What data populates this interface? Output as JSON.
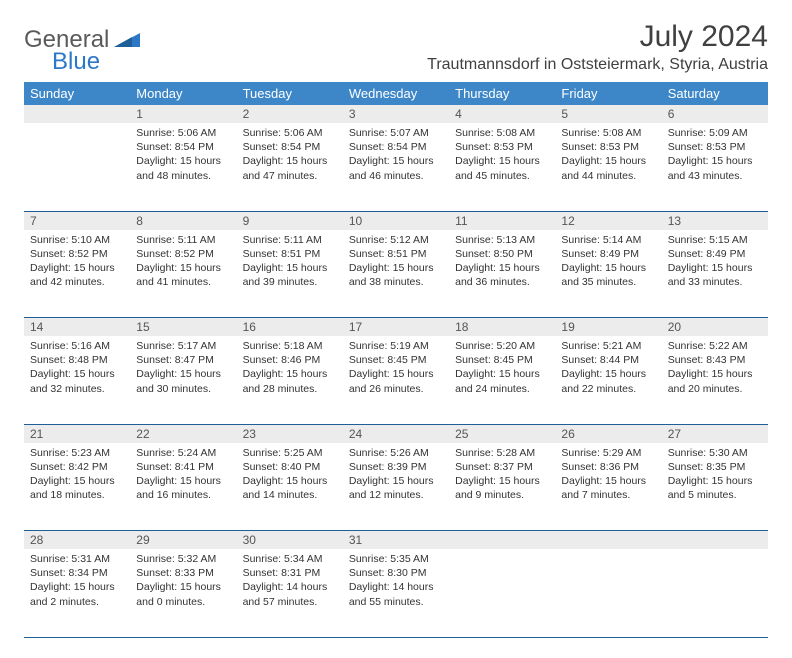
{
  "brand": {
    "general": "General",
    "blue": "Blue"
  },
  "title": "July 2024",
  "location": "Trautmannsdorf in Oststeiermark, Styria, Austria",
  "colors": {
    "header_bg": "#3d87c9",
    "header_fg": "#ffffff",
    "daynum_bg": "#ececec",
    "row_divider": "#1f5f99",
    "text": "#333333",
    "logo_gray": "#5a5a5a",
    "logo_blue": "#2d78c6"
  },
  "typography": {
    "title_fontsize": 30,
    "location_fontsize": 16,
    "dayheader_fontsize": 13,
    "daynum_fontsize": 12,
    "body_fontsize": 10.5
  },
  "day_headers": [
    "Sunday",
    "Monday",
    "Tuesday",
    "Wednesday",
    "Thursday",
    "Friday",
    "Saturday"
  ],
  "weeks": [
    {
      "nums": [
        "",
        "1",
        "2",
        "3",
        "4",
        "5",
        "6"
      ],
      "cells": [
        null,
        {
          "sunrise": "Sunrise: 5:06 AM",
          "sunset": "Sunset: 8:54 PM",
          "day1": "Daylight: 15 hours",
          "day2": "and 48 minutes."
        },
        {
          "sunrise": "Sunrise: 5:06 AM",
          "sunset": "Sunset: 8:54 PM",
          "day1": "Daylight: 15 hours",
          "day2": "and 47 minutes."
        },
        {
          "sunrise": "Sunrise: 5:07 AM",
          "sunset": "Sunset: 8:54 PM",
          "day1": "Daylight: 15 hours",
          "day2": "and 46 minutes."
        },
        {
          "sunrise": "Sunrise: 5:08 AM",
          "sunset": "Sunset: 8:53 PM",
          "day1": "Daylight: 15 hours",
          "day2": "and 45 minutes."
        },
        {
          "sunrise": "Sunrise: 5:08 AM",
          "sunset": "Sunset: 8:53 PM",
          "day1": "Daylight: 15 hours",
          "day2": "and 44 minutes."
        },
        {
          "sunrise": "Sunrise: 5:09 AM",
          "sunset": "Sunset: 8:53 PM",
          "day1": "Daylight: 15 hours",
          "day2": "and 43 minutes."
        }
      ]
    },
    {
      "nums": [
        "7",
        "8",
        "9",
        "10",
        "11",
        "12",
        "13"
      ],
      "cells": [
        {
          "sunrise": "Sunrise: 5:10 AM",
          "sunset": "Sunset: 8:52 PM",
          "day1": "Daylight: 15 hours",
          "day2": "and 42 minutes."
        },
        {
          "sunrise": "Sunrise: 5:11 AM",
          "sunset": "Sunset: 8:52 PM",
          "day1": "Daylight: 15 hours",
          "day2": "and 41 minutes."
        },
        {
          "sunrise": "Sunrise: 5:11 AM",
          "sunset": "Sunset: 8:51 PM",
          "day1": "Daylight: 15 hours",
          "day2": "and 39 minutes."
        },
        {
          "sunrise": "Sunrise: 5:12 AM",
          "sunset": "Sunset: 8:51 PM",
          "day1": "Daylight: 15 hours",
          "day2": "and 38 minutes."
        },
        {
          "sunrise": "Sunrise: 5:13 AM",
          "sunset": "Sunset: 8:50 PM",
          "day1": "Daylight: 15 hours",
          "day2": "and 36 minutes."
        },
        {
          "sunrise": "Sunrise: 5:14 AM",
          "sunset": "Sunset: 8:49 PM",
          "day1": "Daylight: 15 hours",
          "day2": "and 35 minutes."
        },
        {
          "sunrise": "Sunrise: 5:15 AM",
          "sunset": "Sunset: 8:49 PM",
          "day1": "Daylight: 15 hours",
          "day2": "and 33 minutes."
        }
      ]
    },
    {
      "nums": [
        "14",
        "15",
        "16",
        "17",
        "18",
        "19",
        "20"
      ],
      "cells": [
        {
          "sunrise": "Sunrise: 5:16 AM",
          "sunset": "Sunset: 8:48 PM",
          "day1": "Daylight: 15 hours",
          "day2": "and 32 minutes."
        },
        {
          "sunrise": "Sunrise: 5:17 AM",
          "sunset": "Sunset: 8:47 PM",
          "day1": "Daylight: 15 hours",
          "day2": "and 30 minutes."
        },
        {
          "sunrise": "Sunrise: 5:18 AM",
          "sunset": "Sunset: 8:46 PM",
          "day1": "Daylight: 15 hours",
          "day2": "and 28 minutes."
        },
        {
          "sunrise": "Sunrise: 5:19 AM",
          "sunset": "Sunset: 8:45 PM",
          "day1": "Daylight: 15 hours",
          "day2": "and 26 minutes."
        },
        {
          "sunrise": "Sunrise: 5:20 AM",
          "sunset": "Sunset: 8:45 PM",
          "day1": "Daylight: 15 hours",
          "day2": "and 24 minutes."
        },
        {
          "sunrise": "Sunrise: 5:21 AM",
          "sunset": "Sunset: 8:44 PM",
          "day1": "Daylight: 15 hours",
          "day2": "and 22 minutes."
        },
        {
          "sunrise": "Sunrise: 5:22 AM",
          "sunset": "Sunset: 8:43 PM",
          "day1": "Daylight: 15 hours",
          "day2": "and 20 minutes."
        }
      ]
    },
    {
      "nums": [
        "21",
        "22",
        "23",
        "24",
        "25",
        "26",
        "27"
      ],
      "cells": [
        {
          "sunrise": "Sunrise: 5:23 AM",
          "sunset": "Sunset: 8:42 PM",
          "day1": "Daylight: 15 hours",
          "day2": "and 18 minutes."
        },
        {
          "sunrise": "Sunrise: 5:24 AM",
          "sunset": "Sunset: 8:41 PM",
          "day1": "Daylight: 15 hours",
          "day2": "and 16 minutes."
        },
        {
          "sunrise": "Sunrise: 5:25 AM",
          "sunset": "Sunset: 8:40 PM",
          "day1": "Daylight: 15 hours",
          "day2": "and 14 minutes."
        },
        {
          "sunrise": "Sunrise: 5:26 AM",
          "sunset": "Sunset: 8:39 PM",
          "day1": "Daylight: 15 hours",
          "day2": "and 12 minutes."
        },
        {
          "sunrise": "Sunrise: 5:28 AM",
          "sunset": "Sunset: 8:37 PM",
          "day1": "Daylight: 15 hours",
          "day2": "and 9 minutes."
        },
        {
          "sunrise": "Sunrise: 5:29 AM",
          "sunset": "Sunset: 8:36 PM",
          "day1": "Daylight: 15 hours",
          "day2": "and 7 minutes."
        },
        {
          "sunrise": "Sunrise: 5:30 AM",
          "sunset": "Sunset: 8:35 PM",
          "day1": "Daylight: 15 hours",
          "day2": "and 5 minutes."
        }
      ]
    },
    {
      "nums": [
        "28",
        "29",
        "30",
        "31",
        "",
        "",
        ""
      ],
      "cells": [
        {
          "sunrise": "Sunrise: 5:31 AM",
          "sunset": "Sunset: 8:34 PM",
          "day1": "Daylight: 15 hours",
          "day2": "and 2 minutes."
        },
        {
          "sunrise": "Sunrise: 5:32 AM",
          "sunset": "Sunset: 8:33 PM",
          "day1": "Daylight: 15 hours",
          "day2": "and 0 minutes."
        },
        {
          "sunrise": "Sunrise: 5:34 AM",
          "sunset": "Sunset: 8:31 PM",
          "day1": "Daylight: 14 hours",
          "day2": "and 57 minutes."
        },
        {
          "sunrise": "Sunrise: 5:35 AM",
          "sunset": "Sunset: 8:30 PM",
          "day1": "Daylight: 14 hours",
          "day2": "and 55 minutes."
        },
        null,
        null,
        null
      ]
    }
  ]
}
